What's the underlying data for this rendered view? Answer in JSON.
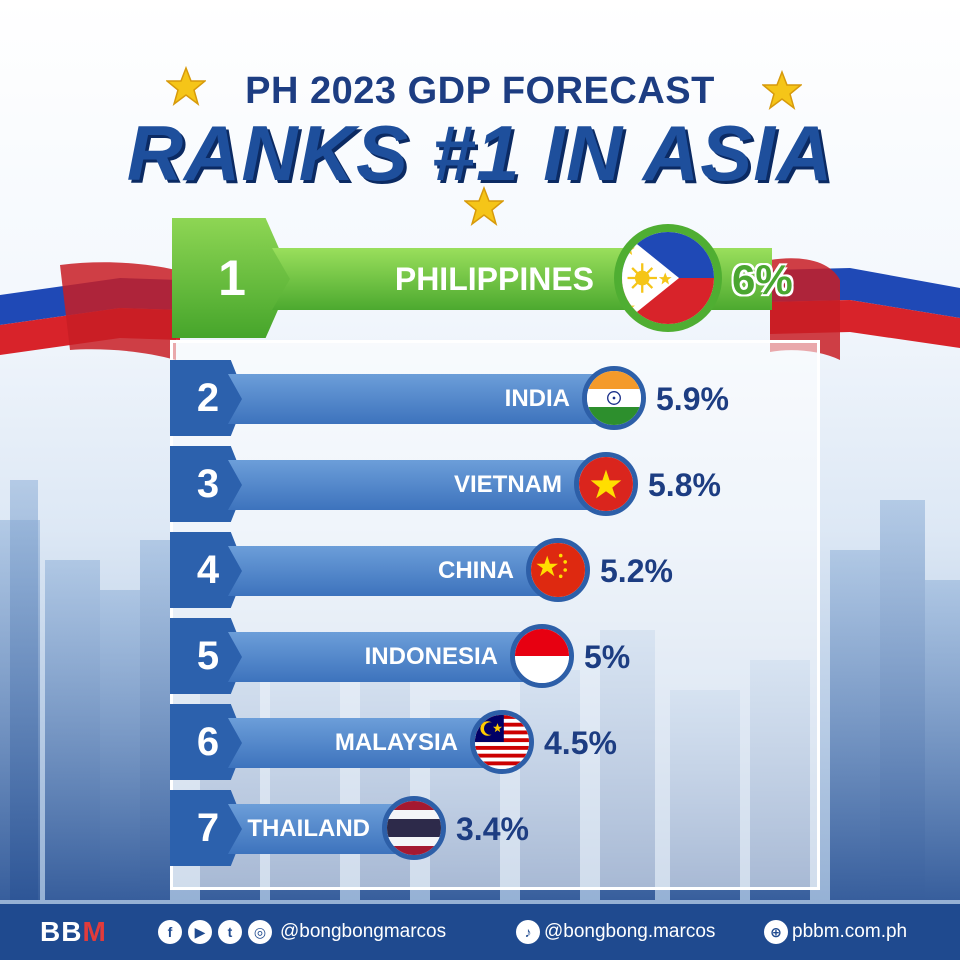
{
  "header": {
    "subtitle": "PH 2023 GDP FORECAST",
    "title": "RANKS #1 IN ASIA"
  },
  "colors": {
    "navy": "#1d3d82",
    "bar_blue": "#3d73bd",
    "highlight_green": "#4ca92f",
    "ribbon_red": "#d8232a",
    "ribbon_blue": "#1f49b6"
  },
  "chart_data": {
    "type": "bar",
    "title": "RANKS #1 IN ASIA",
    "subtitle": "PH 2023 GDP FORECAST",
    "categories": [
      "PHILIPPINES",
      "INDIA",
      "VIETNAM",
      "CHINA",
      "INDONESIA",
      "MALAYSIA",
      "THAILAND"
    ],
    "ranks": [
      "1",
      "2",
      "3",
      "4",
      "5",
      "6",
      "7"
    ],
    "values": [
      6,
      5.9,
      5.8,
      5.2,
      5,
      4.5,
      3.4
    ],
    "value_labels": [
      "6%",
      "5.9%",
      "5.8%",
      "5.2%",
      "5%",
      "4.5%",
      "3.4%"
    ],
    "flags": [
      "philippines-flag-icon",
      "india-flag-icon",
      "vietnam-flag-icon",
      "china-flag-icon",
      "indonesia-flag-icon",
      "malaysia-flag-icon",
      "thailand-flag-icon"
    ],
    "orientation": "horizontal",
    "highlight": "PHILIPPINES",
    "grid": false,
    "legend": "none"
  },
  "footer": {
    "logo_text": [
      "BB",
      "M"
    ],
    "social_icons": [
      "facebook-icon",
      "youtube-icon",
      "twitter-icon",
      "instagram-icon"
    ],
    "social_handle": "@bongbongmarcos",
    "tiktok_handle": "@bongbong.marcos",
    "website": "pbbm.com.ph"
  }
}
